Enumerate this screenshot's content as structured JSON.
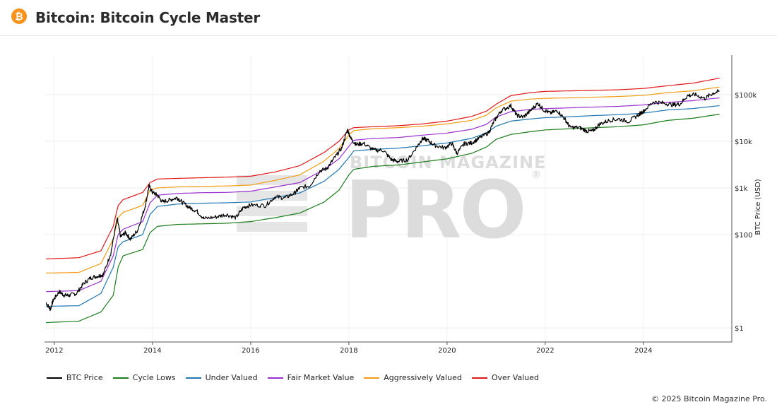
{
  "header": {
    "icon": "bitcoin-icon",
    "icon_glyph": "₿",
    "title": "Bitcoin: Bitcoin Cycle Master"
  },
  "watermark": {
    "top": "BITCOIN MAGAZINE",
    "main": "PRO",
    "mark": "®"
  },
  "copyright": "© 2025 Bitcoin Magazine Pro.",
  "chart_data": {
    "type": "line",
    "title": "Bitcoin: Bitcoin Cycle Master",
    "xlabel": "",
    "ylabel": "BTC Price (USD)",
    "y_scale": "log",
    "ylim": [
      0.5,
      700000
    ],
    "xlim": [
      2011.8,
      2025.8
    ],
    "x_ticks": [
      2012,
      2014,
      2016,
      2018,
      2020,
      2022,
      2024
    ],
    "y_ticks": [
      {
        "value": 1,
        "label": "$1"
      },
      {
        "value": 100,
        "label": "$100"
      },
      {
        "value": 1000,
        "label": "$1k"
      },
      {
        "value": 10000,
        "label": "$10k"
      },
      {
        "value": 100000,
        "label": "$100k"
      }
    ],
    "grid": true,
    "legend_position": "bottom-left",
    "series": [
      {
        "name": "BTC Price",
        "color": "#000000",
        "width": 1.2,
        "jitter": true,
        "points": [
          [
            2011.83,
            3.5
          ],
          [
            2011.92,
            2.5
          ],
          [
            2011.98,
            4
          ],
          [
            2012.1,
            6
          ],
          [
            2012.2,
            5
          ],
          [
            2012.3,
            5
          ],
          [
            2012.45,
            5.5
          ],
          [
            2012.6,
            9
          ],
          [
            2012.75,
            12
          ],
          [
            2012.9,
            13
          ],
          [
            2013.0,
            14
          ],
          [
            2013.15,
            40
          ],
          [
            2013.28,
            220
          ],
          [
            2013.35,
            90
          ],
          [
            2013.45,
            110
          ],
          [
            2013.55,
            80
          ],
          [
            2013.7,
            125
          ],
          [
            2013.85,
            400
          ],
          [
            2013.93,
            1100
          ],
          [
            2014.0,
            800
          ],
          [
            2014.1,
            700
          ],
          [
            2014.2,
            500
          ],
          [
            2014.35,
            550
          ],
          [
            2014.5,
            620
          ],
          [
            2014.6,
            500
          ],
          [
            2014.75,
            380
          ],
          [
            2014.9,
            320
          ],
          [
            2015.05,
            220
          ],
          [
            2015.3,
            240
          ],
          [
            2015.5,
            270
          ],
          [
            2015.7,
            230
          ],
          [
            2015.85,
            380
          ],
          [
            2016.0,
            430
          ],
          [
            2016.3,
            420
          ],
          [
            2016.5,
            650
          ],
          [
            2016.7,
            610
          ],
          [
            2016.9,
            780
          ],
          [
            2017.0,
            1000
          ],
          [
            2017.2,
            1100
          ],
          [
            2017.4,
            2300
          ],
          [
            2017.55,
            2600
          ],
          [
            2017.7,
            4300
          ],
          [
            2017.85,
            7000
          ],
          [
            2017.97,
            17500
          ],
          [
            2018.05,
            11000
          ],
          [
            2018.15,
            8500
          ],
          [
            2018.3,
            9000
          ],
          [
            2018.5,
            6500
          ],
          [
            2018.7,
            6400
          ],
          [
            2018.87,
            4000
          ],
          [
            2019.0,
            3700
          ],
          [
            2019.2,
            4000
          ],
          [
            2019.4,
            8000
          ],
          [
            2019.5,
            11500
          ],
          [
            2019.6,
            10500
          ],
          [
            2019.75,
            8200
          ],
          [
            2019.95,
            7200
          ],
          [
            2020.1,
            9000
          ],
          [
            2020.2,
            5500
          ],
          [
            2020.35,
            8800
          ],
          [
            2020.5,
            9200
          ],
          [
            2020.65,
            11500
          ],
          [
            2020.85,
            15500
          ],
          [
            2020.97,
            28000
          ],
          [
            2021.1,
            45000
          ],
          [
            2021.3,
            58000
          ],
          [
            2021.42,
            36000
          ],
          [
            2021.55,
            33000
          ],
          [
            2021.7,
            45000
          ],
          [
            2021.85,
            65000
          ],
          [
            2021.97,
            47000
          ],
          [
            2022.1,
            40000
          ],
          [
            2022.25,
            45000
          ],
          [
            2022.4,
            30000
          ],
          [
            2022.5,
            20000
          ],
          [
            2022.7,
            19500
          ],
          [
            2022.85,
            16500
          ],
          [
            2022.97,
            16500
          ],
          [
            2023.1,
            23000
          ],
          [
            2023.3,
            28000
          ],
          [
            2023.5,
            30000
          ],
          [
            2023.7,
            26500
          ],
          [
            2023.9,
            37000
          ],
          [
            2024.0,
            44000
          ],
          [
            2024.2,
            70000
          ],
          [
            2024.4,
            66000
          ],
          [
            2024.6,
            60000
          ],
          [
            2024.75,
            63000
          ],
          [
            2024.9,
            95000
          ],
          [
            2025.05,
            100000
          ],
          [
            2025.25,
            82000
          ],
          [
            2025.4,
            105000
          ],
          [
            2025.55,
            118000
          ]
        ]
      },
      {
        "name": "Cycle Lows",
        "color": "#1a7e1a",
        "width": 1.2,
        "points": [
          [
            2011.83,
            1.3
          ],
          [
            2012.5,
            1.4
          ],
          [
            2012.95,
            2.2
          ],
          [
            2013.2,
            5
          ],
          [
            2013.3,
            20
          ],
          [
            2013.4,
            35
          ],
          [
            2013.8,
            48
          ],
          [
            2013.95,
            110
          ],
          [
            2014.1,
            150
          ],
          [
            2014.5,
            165
          ],
          [
            2015.0,
            170
          ],
          [
            2015.5,
            175
          ],
          [
            2016.0,
            190
          ],
          [
            2016.5,
            230
          ],
          [
            2017.0,
            290
          ],
          [
            2017.5,
            500
          ],
          [
            2017.8,
            900
          ],
          [
            2018.0,
            1900
          ],
          [
            2018.1,
            2500
          ],
          [
            2018.5,
            2900
          ],
          [
            2019.0,
            3100
          ],
          [
            2019.5,
            3600
          ],
          [
            2020.0,
            4200
          ],
          [
            2020.5,
            5500
          ],
          [
            2020.8,
            7500
          ],
          [
            2021.0,
            11000
          ],
          [
            2021.3,
            14000
          ],
          [
            2021.7,
            16000
          ],
          [
            2022.0,
            17500
          ],
          [
            2022.5,
            18500
          ],
          [
            2023.0,
            19500
          ],
          [
            2023.5,
            20500
          ],
          [
            2024.0,
            22500
          ],
          [
            2024.5,
            28000
          ],
          [
            2025.0,
            31000
          ],
          [
            2025.55,
            38000
          ]
        ]
      },
      {
        "name": "Under Valued",
        "color": "#1f77b4",
        "width": 1.2,
        "points": [
          [
            2011.83,
            2.9
          ],
          [
            2012.5,
            3.0
          ],
          [
            2012.95,
            5.5
          ],
          [
            2013.2,
            20
          ],
          [
            2013.3,
            55
          ],
          [
            2013.4,
            70
          ],
          [
            2013.8,
            100
          ],
          [
            2013.95,
            270
          ],
          [
            2014.1,
            400
          ],
          [
            2014.5,
            450
          ],
          [
            2015.0,
            470
          ],
          [
            2015.5,
            480
          ],
          [
            2016.0,
            500
          ],
          [
            2016.5,
            620
          ],
          [
            2017.0,
            780
          ],
          [
            2017.5,
            1400
          ],
          [
            2017.8,
            2500
          ],
          [
            2018.0,
            4500
          ],
          [
            2018.1,
            6200
          ],
          [
            2018.5,
            6700
          ],
          [
            2019.0,
            7100
          ],
          [
            2019.5,
            8000
          ],
          [
            2020.0,
            9200
          ],
          [
            2020.5,
            11500
          ],
          [
            2020.8,
            15000
          ],
          [
            2021.0,
            21000
          ],
          [
            2021.3,
            27000
          ],
          [
            2021.7,
            30000
          ],
          [
            2022.0,
            32000
          ],
          [
            2022.5,
            33500
          ],
          [
            2023.0,
            35500
          ],
          [
            2023.5,
            37000
          ],
          [
            2024.0,
            40000
          ],
          [
            2024.5,
            47000
          ],
          [
            2025.0,
            50000
          ],
          [
            2025.55,
            58000
          ]
        ]
      },
      {
        "name": "Fair Market Value",
        "color": "#9b30d0",
        "width": 1.2,
        "points": [
          [
            2011.83,
            6
          ],
          [
            2012.5,
            6.3
          ],
          [
            2012.95,
            10
          ],
          [
            2013.2,
            35
          ],
          [
            2013.3,
            100
          ],
          [
            2013.4,
            130
          ],
          [
            2013.8,
            190
          ],
          [
            2013.95,
            480
          ],
          [
            2014.1,
            700
          ],
          [
            2014.5,
            760
          ],
          [
            2015.0,
            790
          ],
          [
            2015.5,
            800
          ],
          [
            2016.0,
            850
          ],
          [
            2016.5,
            1050
          ],
          [
            2017.0,
            1300
          ],
          [
            2017.5,
            2500
          ],
          [
            2017.8,
            4200
          ],
          [
            2018.0,
            7800
          ],
          [
            2018.1,
            10500
          ],
          [
            2018.5,
            11500
          ],
          [
            2019.0,
            12000
          ],
          [
            2019.5,
            13500
          ],
          [
            2020.0,
            15000
          ],
          [
            2020.5,
            18000
          ],
          [
            2020.8,
            23000
          ],
          [
            2021.0,
            33000
          ],
          [
            2021.3,
            43000
          ],
          [
            2021.7,
            48000
          ],
          [
            2022.0,
            50000
          ],
          [
            2022.5,
            52000
          ],
          [
            2023.0,
            54000
          ],
          [
            2023.5,
            56000
          ],
          [
            2024.0,
            60000
          ],
          [
            2024.5,
            68000
          ],
          [
            2025.0,
            74000
          ],
          [
            2025.55,
            85000
          ]
        ]
      },
      {
        "name": "Aggressively Valued",
        "color": "#f39c12",
        "width": 1.2,
        "points": [
          [
            2011.83,
            15
          ],
          [
            2012.5,
            15.5
          ],
          [
            2012.95,
            24
          ],
          [
            2013.2,
            80
          ],
          [
            2013.3,
            230
          ],
          [
            2013.4,
            300
          ],
          [
            2013.8,
            420
          ],
          [
            2013.95,
            900
          ],
          [
            2014.1,
            1000
          ],
          [
            2014.5,
            1050
          ],
          [
            2015.0,
            1080
          ],
          [
            2015.5,
            1100
          ],
          [
            2016.0,
            1150
          ],
          [
            2016.5,
            1450
          ],
          [
            2017.0,
            1900
          ],
          [
            2017.5,
            3800
          ],
          [
            2017.8,
            7000
          ],
          [
            2018.0,
            13500
          ],
          [
            2018.1,
            17000
          ],
          [
            2018.5,
            18500
          ],
          [
            2019.0,
            19500
          ],
          [
            2019.5,
            21000
          ],
          [
            2020.0,
            23500
          ],
          [
            2020.5,
            28000
          ],
          [
            2020.8,
            36000
          ],
          [
            2021.0,
            52000
          ],
          [
            2021.3,
            72000
          ],
          [
            2021.7,
            80000
          ],
          [
            2022.0,
            83000
          ],
          [
            2022.5,
            85000
          ],
          [
            2023.0,
            88000
          ],
          [
            2023.5,
            91000
          ],
          [
            2024.0,
            96000
          ],
          [
            2024.5,
            110000
          ],
          [
            2025.0,
            120000
          ],
          [
            2025.55,
            145000
          ]
        ]
      },
      {
        "name": "Over Valued",
        "color": "#e01818",
        "width": 1.2,
        "points": [
          [
            2011.83,
            30
          ],
          [
            2012.5,
            32
          ],
          [
            2012.95,
            45
          ],
          [
            2013.2,
            150
          ],
          [
            2013.3,
            420
          ],
          [
            2013.4,
            560
          ],
          [
            2013.8,
            800
          ],
          [
            2013.95,
            1300
          ],
          [
            2014.1,
            1550
          ],
          [
            2014.5,
            1600
          ],
          [
            2015.0,
            1650
          ],
          [
            2015.5,
            1700
          ],
          [
            2016.0,
            1780
          ],
          [
            2016.5,
            2200
          ],
          [
            2017.0,
            3000
          ],
          [
            2017.5,
            5800
          ],
          [
            2017.8,
            10000
          ],
          [
            2018.0,
            17500
          ],
          [
            2018.1,
            19500
          ],
          [
            2018.5,
            20500
          ],
          [
            2019.0,
            21500
          ],
          [
            2019.5,
            23500
          ],
          [
            2020.0,
            27000
          ],
          [
            2020.5,
            34000
          ],
          [
            2020.8,
            44000
          ],
          [
            2021.0,
            62000
          ],
          [
            2021.3,
            95000
          ],
          [
            2021.7,
            110000
          ],
          [
            2022.0,
            117000
          ],
          [
            2022.5,
            120000
          ],
          [
            2023.0,
            123000
          ],
          [
            2023.5,
            127000
          ],
          [
            2024.0,
            135000
          ],
          [
            2024.5,
            155000
          ],
          [
            2025.0,
            175000
          ],
          [
            2025.55,
            225000
          ]
        ]
      }
    ]
  }
}
